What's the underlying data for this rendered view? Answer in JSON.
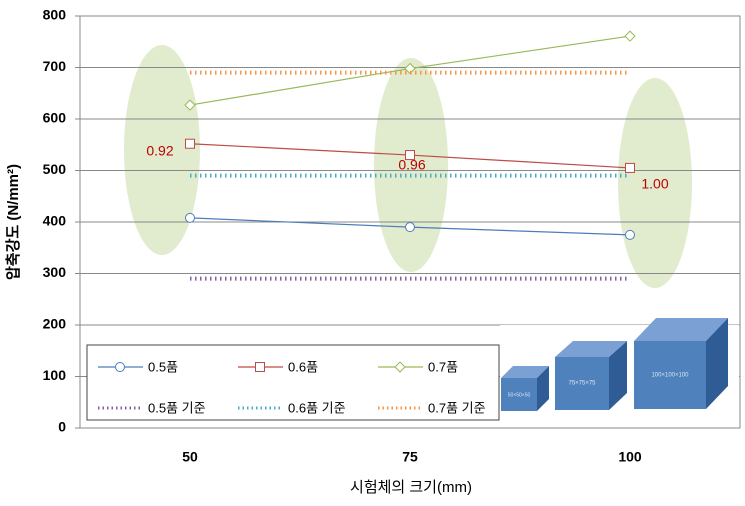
{
  "chart_data": {
    "type": "line",
    "y_label": "압축강도 (N/mm²)",
    "x_label": "시험체의 크기(mm)",
    "categories": [
      "50",
      "75",
      "100"
    ],
    "series": [
      {
        "name": "0.5품",
        "color": "#4a7ebb",
        "marker": "circle",
        "style": "solid",
        "values": [
          408,
          390,
          375
        ]
      },
      {
        "name": "0.6품",
        "color": "#be4b48",
        "marker": "square",
        "style": "solid",
        "values": [
          552,
          530,
          505
        ]
      },
      {
        "name": "0.7품",
        "color": "#98b954",
        "marker": "diamond",
        "style": "solid",
        "values": [
          627,
          698,
          761
        ]
      },
      {
        "name": "0.5품 기준",
        "color": "#8064a2",
        "marker": "none",
        "style": "dotted",
        "values": [
          290,
          290,
          290
        ]
      },
      {
        "name": "0.6품 기준",
        "color": "#4bacc6",
        "marker": "none",
        "style": "dotted",
        "values": [
          490,
          490,
          490
        ]
      },
      {
        "name": "0.7품 기준",
        "color": "#f79646",
        "marker": "none",
        "style": "dotted",
        "values": [
          690,
          690,
          690
        ]
      }
    ],
    "ylim": [
      0,
      800
    ],
    "yticks": [
      0,
      100,
      200,
      300,
      400,
      500,
      600,
      700,
      800
    ],
    "grid": true,
    "annotations": [
      "0.92",
      "0.96",
      "1.00"
    ],
    "specimen_labels": [
      "50×50×50",
      "75×75×75",
      "100×100×100"
    ]
  }
}
